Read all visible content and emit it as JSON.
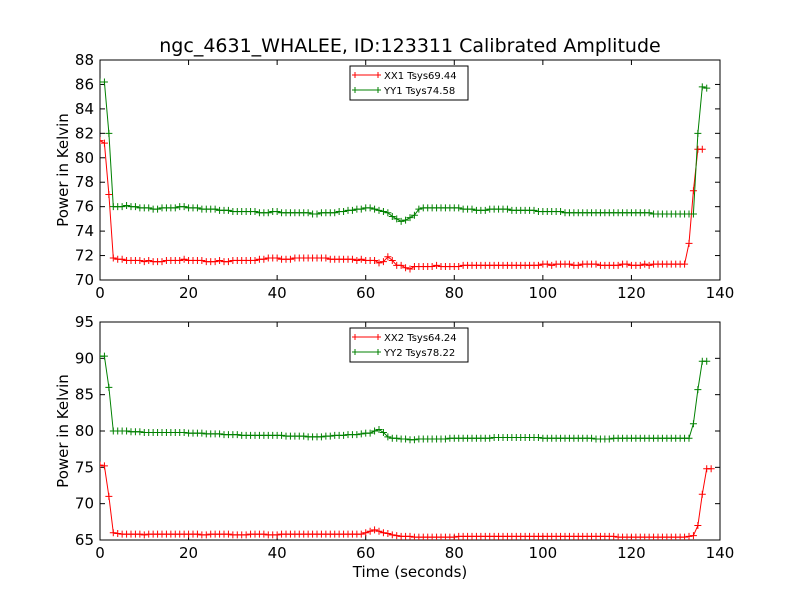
{
  "title": "ngc_4631_WHALEE, ID:123311 Calibrated Amplitude",
  "xlabel": "Time (seconds)",
  "colors": {
    "red": "#ff0000",
    "green": "#008000"
  },
  "chart_data": [
    {
      "type": "line",
      "ylabel": "Power in Kelvin",
      "xlim": [
        0,
        140
      ],
      "ylim": [
        70,
        88
      ],
      "xticks": [
        "0",
        "20",
        "40",
        "60",
        "80",
        "100",
        "120",
        "140"
      ],
      "yticks": [
        "70",
        "72",
        "74",
        "76",
        "78",
        "80",
        "82",
        "84",
        "86",
        "88"
      ],
      "legend_position": "top-center",
      "x_start": 0,
      "x_step": 1,
      "series": [
        {
          "name": "XX1 Tsys69.44",
          "color": "#ff0000",
          "values": [
            81.4,
            81.2,
            77.0,
            71.8,
            71.7,
            71.7,
            71.6,
            71.6,
            71.6,
            71.6,
            71.5,
            71.6,
            71.5,
            71.5,
            71.5,
            71.6,
            71.6,
            71.6,
            71.6,
            71.7,
            71.6,
            71.6,
            71.6,
            71.6,
            71.5,
            71.5,
            71.5,
            71.6,
            71.5,
            71.5,
            71.6,
            71.6,
            71.6,
            71.6,
            71.6,
            71.6,
            71.7,
            71.7,
            71.8,
            71.8,
            71.8,
            71.7,
            71.7,
            71.7,
            71.8,
            71.8,
            71.8,
            71.8,
            71.8,
            71.8,
            71.8,
            71.8,
            71.7,
            71.7,
            71.7,
            71.7,
            71.7,
            71.7,
            71.6,
            71.7,
            71.6,
            71.6,
            71.6,
            71.4,
            71.5,
            71.9,
            71.6,
            71.2,
            71.2,
            71.0,
            70.9,
            71.1,
            71.1,
            71.1,
            71.1,
            71.1,
            71.2,
            71.1,
            71.1,
            71.1,
            71.1,
            71.1,
            71.2,
            71.2,
            71.2,
            71.2,
            71.2,
            71.2,
            71.2,
            71.2,
            71.2,
            71.2,
            71.2,
            71.2,
            71.2,
            71.2,
            71.2,
            71.2,
            71.2,
            71.2,
            71.3,
            71.3,
            71.2,
            71.3,
            71.3,
            71.3,
            71.3,
            71.2,
            71.2,
            71.3,
            71.3,
            71.3,
            71.3,
            71.2,
            71.2,
            71.2,
            71.2,
            71.2,
            71.3,
            71.3,
            71.2,
            71.2,
            71.2,
            71.3,
            71.2,
            71.3,
            71.3,
            71.3,
            71.3,
            71.3,
            71.3,
            71.3,
            71.3,
            73.0,
            77.3,
            80.7,
            80.7
          ]
        },
        {
          "name": "YY1 Tsys74.58",
          "color": "#008000",
          "values": [
            86.2,
            86.2,
            82.0,
            76.0,
            76.0,
            76.0,
            76.1,
            76.0,
            76.0,
            75.9,
            75.9,
            75.9,
            75.8,
            75.8,
            75.9,
            75.9,
            75.9,
            75.9,
            76.0,
            76.0,
            75.9,
            75.9,
            75.9,
            75.8,
            75.8,
            75.8,
            75.8,
            75.7,
            75.7,
            75.7,
            75.6,
            75.6,
            75.6,
            75.6,
            75.6,
            75.6,
            75.5,
            75.5,
            75.5,
            75.6,
            75.6,
            75.5,
            75.5,
            75.5,
            75.5,
            75.5,
            75.5,
            75.5,
            75.4,
            75.4,
            75.5,
            75.5,
            75.5,
            75.5,
            75.6,
            75.6,
            75.7,
            75.7,
            75.8,
            75.8,
            75.9,
            75.9,
            75.8,
            75.7,
            75.6,
            75.5,
            75.2,
            75.0,
            74.8,
            74.9,
            75.1,
            75.3,
            75.8,
            75.9,
            75.9,
            75.9,
            75.9,
            75.9,
            75.9,
            75.9,
            75.9,
            75.9,
            75.8,
            75.8,
            75.8,
            75.7,
            75.7,
            75.7,
            75.8,
            75.8,
            75.8,
            75.8,
            75.8,
            75.7,
            75.7,
            75.7,
            75.7,
            75.7,
            75.7,
            75.6,
            75.6,
            75.6,
            75.6,
            75.6,
            75.6,
            75.5,
            75.5,
            75.5,
            75.5,
            75.5,
            75.5,
            75.5,
            75.5,
            75.5,
            75.5,
            75.5,
            75.5,
            75.5,
            75.5,
            75.5,
            75.5,
            75.5,
            75.5,
            75.5,
            75.5,
            75.4,
            75.4,
            75.4,
            75.4,
            75.4,
            75.4,
            75.4,
            75.4,
            75.4,
            75.4,
            82.0,
            85.8,
            85.7
          ]
        }
      ]
    },
    {
      "type": "line",
      "ylabel": "Power in Kelvin",
      "xlabel": "Time (seconds)",
      "xlim": [
        0,
        140
      ],
      "ylim": [
        65,
        95
      ],
      "xticks": [
        "0",
        "20",
        "40",
        "60",
        "80",
        "100",
        "120",
        "140"
      ],
      "yticks": [
        "65",
        "70",
        "75",
        "80",
        "85",
        "90",
        "95"
      ],
      "legend_position": "top-center",
      "x_start": 0,
      "x_step": 1,
      "series": [
        {
          "name": "XX2 Tsys64.24",
          "color": "#ff0000",
          "values": [
            75.3,
            75.2,
            71.0,
            66.0,
            65.9,
            65.8,
            65.8,
            65.8,
            65.8,
            65.8,
            65.7,
            65.8,
            65.8,
            65.8,
            65.8,
            65.8,
            65.8,
            65.8,
            65.8,
            65.8,
            65.8,
            65.8,
            65.8,
            65.7,
            65.7,
            65.8,
            65.8,
            65.8,
            65.8,
            65.8,
            65.7,
            65.7,
            65.7,
            65.7,
            65.8,
            65.8,
            65.8,
            65.8,
            65.7,
            65.7,
            65.7,
            65.8,
            65.8,
            65.8,
            65.8,
            65.8,
            65.8,
            65.8,
            65.8,
            65.8,
            65.8,
            65.8,
            65.8,
            65.8,
            65.8,
            65.8,
            65.8,
            65.8,
            65.8,
            65.8,
            66.0,
            66.2,
            66.4,
            66.2,
            66.0,
            65.9,
            65.7,
            65.6,
            65.5,
            65.5,
            65.5,
            65.4,
            65.4,
            65.4,
            65.4,
            65.4,
            65.4,
            65.4,
            65.4,
            65.4,
            65.4,
            65.5,
            65.5,
            65.5,
            65.5,
            65.5,
            65.5,
            65.5,
            65.5,
            65.5,
            65.5,
            65.5,
            65.5,
            65.5,
            65.5,
            65.5,
            65.5,
            65.5,
            65.5,
            65.5,
            65.5,
            65.5,
            65.5,
            65.5,
            65.5,
            65.5,
            65.5,
            65.5,
            65.5,
            65.5,
            65.5,
            65.5,
            65.5,
            65.5,
            65.5,
            65.5,
            65.5,
            65.4,
            65.4,
            65.4,
            65.4,
            65.4,
            65.4,
            65.4,
            65.4,
            65.4,
            65.4,
            65.4,
            65.4,
            65.4,
            65.4,
            65.4,
            65.4,
            65.5,
            65.6,
            67.0,
            71.3,
            74.8,
            74.8
          ]
        },
        {
          "name": "YY2 Tsys78.22",
          "color": "#008000",
          "values": [
            90.3,
            90.3,
            86.0,
            80.0,
            80.0,
            80.0,
            80.0,
            79.9,
            79.9,
            79.9,
            79.8,
            79.8,
            79.8,
            79.8,
            79.8,
            79.8,
            79.8,
            79.8,
            79.8,
            79.8,
            79.7,
            79.7,
            79.7,
            79.7,
            79.6,
            79.6,
            79.6,
            79.6,
            79.5,
            79.5,
            79.5,
            79.5,
            79.4,
            79.4,
            79.4,
            79.4,
            79.4,
            79.4,
            79.4,
            79.4,
            79.4,
            79.4,
            79.3,
            79.3,
            79.3,
            79.3,
            79.3,
            79.2,
            79.2,
            79.2,
            79.2,
            79.3,
            79.3,
            79.4,
            79.4,
            79.4,
            79.5,
            79.5,
            79.5,
            79.6,
            79.7,
            79.7,
            80.0,
            80.2,
            79.8,
            79.2,
            79.0,
            79.0,
            78.9,
            78.9,
            78.8,
            78.8,
            78.9,
            78.9,
            78.9,
            78.9,
            78.9,
            78.9,
            78.9,
            79.0,
            79.0,
            79.0,
            79.0,
            79.0,
            79.0,
            79.0,
            79.0,
            79.0,
            79.0,
            79.1,
            79.1,
            79.1,
            79.1,
            79.1,
            79.1,
            79.1,
            79.1,
            79.1,
            79.1,
            79.1,
            79.0,
            79.0,
            79.0,
            79.0,
            79.0,
            79.0,
            79.0,
            79.0,
            79.0,
            79.0,
            79.0,
            79.0,
            78.9,
            78.9,
            78.9,
            78.9,
            79.0,
            79.0,
            79.0,
            79.0,
            79.0,
            79.0,
            79.0,
            79.0,
            79.0,
            79.0,
            79.0,
            79.0,
            79.0,
            79.0,
            79.0,
            79.0,
            79.0,
            79.0,
            81.0,
            85.7,
            89.6,
            89.6
          ]
        }
      ]
    }
  ]
}
